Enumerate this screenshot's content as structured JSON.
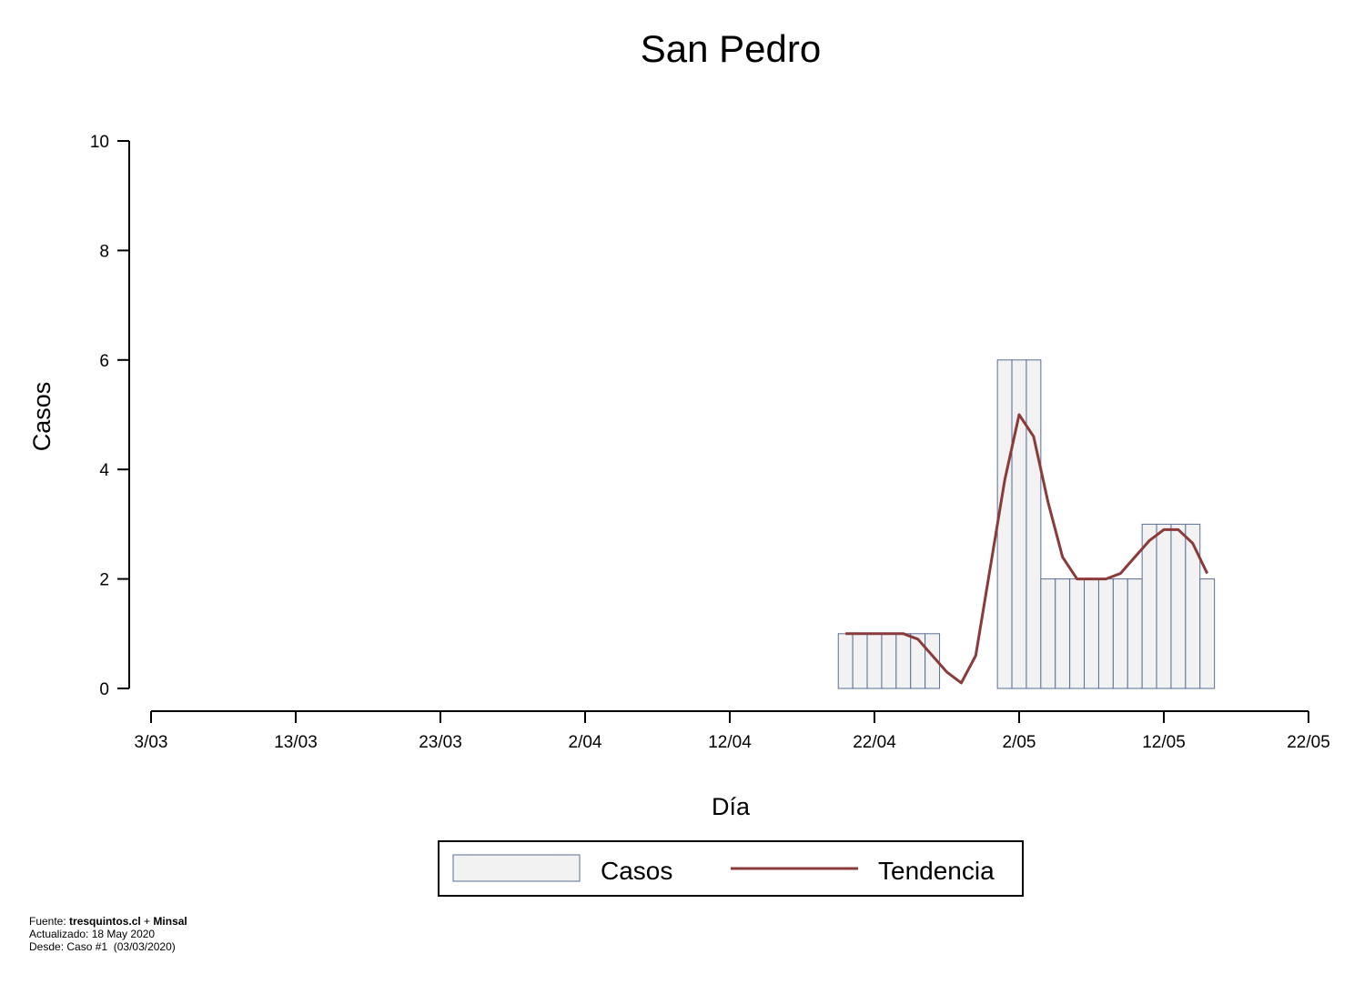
{
  "chart_data": {
    "type": "bar",
    "title": "San Pedro",
    "xlabel": "Día",
    "ylabel": "Casos",
    "x_tick_labels": [
      "3/03",
      "13/03",
      "23/03",
      "2/04",
      "12/04",
      "22/04",
      "2/05",
      "12/05",
      "22/05"
    ],
    "x_tick_days": [
      0,
      10,
      20,
      30,
      40,
      50,
      60,
      70,
      80
    ],
    "xlim_days": [
      0,
      80
    ],
    "y_tick_labels": [
      "0",
      "2",
      "4",
      "6",
      "8",
      "10"
    ],
    "ylim": [
      0,
      10
    ],
    "grid": false,
    "legend_position": "bottom",
    "series": [
      {
        "name": "Casos",
        "kind": "bar",
        "color": "#f2f2f2",
        "stroke": "#5a6e96",
        "dates": [
          "20/04",
          "21/04",
          "22/04",
          "23/04",
          "24/04",
          "25/04",
          "26/04",
          "27/04",
          "28/04",
          "29/04",
          "30/04",
          "1/05",
          "2/05",
          "3/05",
          "4/05",
          "5/05",
          "6/05",
          "7/05",
          "8/05",
          "9/05",
          "10/05",
          "11/05",
          "12/05",
          "13/05",
          "14/05",
          "15/05"
        ],
        "values": [
          1,
          1,
          1,
          1,
          1,
          1,
          1,
          0,
          0,
          0,
          0,
          6,
          6,
          6,
          2,
          2,
          2,
          2,
          2,
          2,
          2,
          3,
          3,
          3,
          3,
          2
        ]
      },
      {
        "name": "Tendencia",
        "kind": "line",
        "color": "#8b3a3a",
        "dates": [
          "20/04",
          "21/04",
          "22/04",
          "23/04",
          "24/04",
          "25/04",
          "26/04",
          "27/04",
          "28/04",
          "29/04",
          "30/04",
          "1/05",
          "2/05",
          "3/05",
          "4/05",
          "5/05",
          "6/05",
          "7/05",
          "8/05",
          "9/05",
          "10/05",
          "11/05",
          "12/05",
          "13/05",
          "14/05",
          "15/05"
        ],
        "values": [
          1,
          1,
          1,
          1,
          1,
          0.9,
          0.6,
          0.3,
          0.1,
          0.6,
          2.2,
          3.8,
          5.0,
          4.6,
          3.4,
          2.4,
          2.0,
          2.0,
          2.0,
          2.1,
          2.4,
          2.7,
          2.9,
          2.9,
          2.65,
          2.1
        ]
      }
    ]
  },
  "legend": {
    "items": [
      {
        "label": "Casos"
      },
      {
        "label": "Tendencia"
      }
    ]
  },
  "footer": {
    "source_prefix": "Fuente: ",
    "source_site": "tresquintos.cl",
    "source_join": " + ",
    "source_org": "Minsal",
    "updated": "Actualizado: 18 May 2020",
    "since": "Desde: Caso #1  (03/03/2020)"
  }
}
